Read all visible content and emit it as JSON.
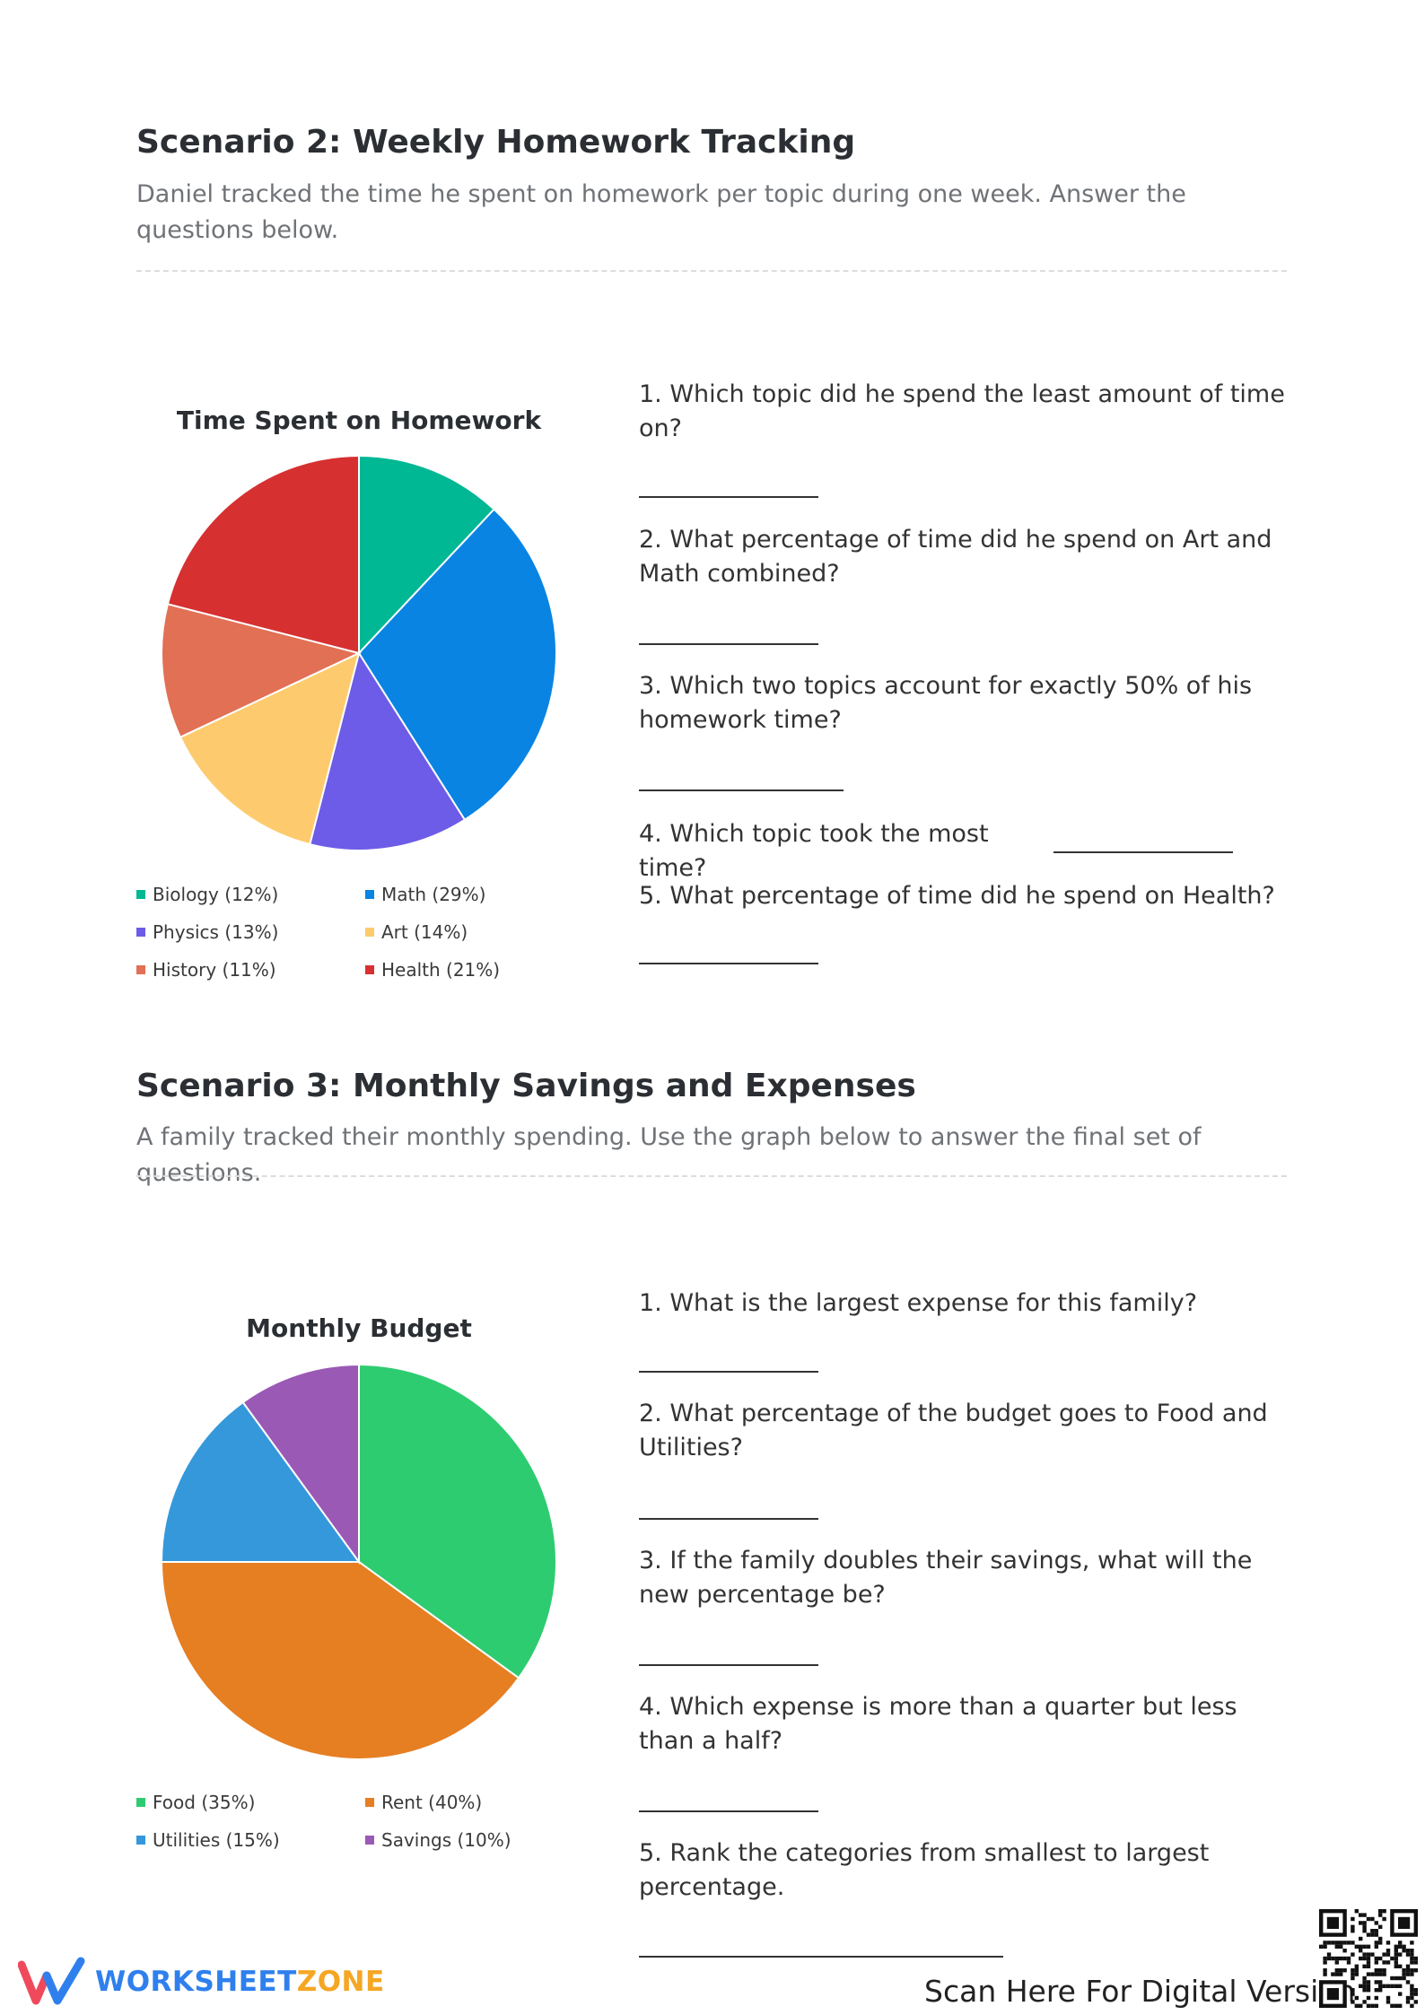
{
  "scenario2": {
    "title": "Scenario 2: Weekly Homework Tracking",
    "description": "Daniel tracked the time he spent on homework per topic during one week. Answer the questions below.",
    "chart_title": "Time Spent on Homework",
    "legend": [
      {
        "label": "Biology (12%)",
        "color": "#00b894"
      },
      {
        "label": "Math (29%)",
        "color": "#0984e3"
      },
      {
        "label": "Physics (13%)",
        "color": "#6c5ce7"
      },
      {
        "label": "Art (14%)",
        "color": "#fdcb6e"
      },
      {
        "label": "History (11%)",
        "color": "#e17055"
      },
      {
        "label": "Health (21%)",
        "color": "#d63031"
      }
    ],
    "questions": [
      "1. Which topic did he spend the least amount of time on?",
      "2. What percentage of time did he spend on Art and Math combined?",
      "3. Which two topics account for exactly 50% of his homework time?",
      "4. Which topic took the most time?",
      "5. What percentage of time did he spend on Health?"
    ]
  },
  "scenario3": {
    "title": "Scenario 3: Monthly Savings and Expenses",
    "description": "A family tracked their monthly spending. Use the graph below to answer the final set of questions.",
    "chart_title": "Monthly Budget",
    "legend": [
      {
        "label": "Food (35%)",
        "color": "#2ecc71"
      },
      {
        "label": "Rent (40%)",
        "color": "#e67e22"
      },
      {
        "label": "Utilities (15%)",
        "color": "#3498db"
      },
      {
        "label": "Savings (10%)",
        "color": "#9b59b6"
      }
    ],
    "questions": [
      "1. What is the largest expense for this family?",
      "2. What percentage of the budget goes to Food and Utilities?",
      "3. If the family doubles their savings, what will the new percentage be?",
      "4. Which expense is more than a quarter but less than a half?",
      "5. Rank the categories from smallest to largest percentage."
    ]
  },
  "chart_data": [
    {
      "type": "pie",
      "title": "Time Spent on Homework",
      "categories": [
        "Biology",
        "Math",
        "Physics",
        "Art",
        "History",
        "Health"
      ],
      "values": [
        12,
        29,
        13,
        14,
        11,
        21
      ],
      "colors": [
        "#00b894",
        "#0984e3",
        "#6c5ce7",
        "#fdcb6e",
        "#e17055",
        "#d63031"
      ],
      "legend_position": "bottom"
    },
    {
      "type": "pie",
      "title": "Monthly Budget",
      "categories": [
        "Food",
        "Rent",
        "Utilities",
        "Savings"
      ],
      "values": [
        35,
        40,
        15,
        10
      ],
      "colors": [
        "#2ecc71",
        "#e67e22",
        "#3498db",
        "#9b59b6"
      ],
      "legend_position": "bottom"
    }
  ],
  "footer": {
    "logo_text_a": "WORKSHEET",
    "logo_text_b": "ZONE",
    "logo_color_a": "#2f80ed",
    "logo_color_b": "#f5a623",
    "scan_text": "Scan Here For Digital Version"
  }
}
